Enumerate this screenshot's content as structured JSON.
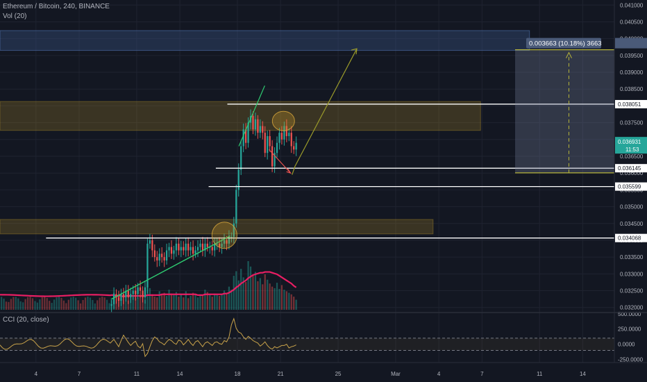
{
  "header": {
    "symbol_line": "Ethereum / Bitcoin, 240, BINANCE",
    "volume_label": "Vol (20)",
    "cci_label": "CCI (20, close)"
  },
  "colors": {
    "background": "#131722",
    "up": "#26a69a",
    "down": "#ef5350",
    "vol_ma": "#e91e63",
    "cci": "#c9a34a",
    "trendline": "#2ecc71",
    "arrow": "#9b9b2a",
    "zone_fill": "rgba(200,160,40,0.22)",
    "blue_zone": "rgba(60,90,140,0.35)"
  },
  "chart_data": {
    "type": "candlestick",
    "symbol": "ETHBTC",
    "interval": "240",
    "exchange": "BINANCE",
    "price_axis_ticks": [
      "0.041000",
      "0.040500",
      "0.040000",
      "0.039500",
      "0.039000",
      "0.038500",
      "0.038000",
      "0.037500",
      "0.037000",
      "0.036500",
      "0.036000",
      "0.035500",
      "0.035000",
      "0.034500",
      "0.034000",
      "0.033500",
      "0.033000",
      "0.032500",
      "0.032000"
    ],
    "ylim": [
      0.03185,
      0.04115
    ],
    "x_ticks": [
      {
        "label": "4",
        "day": 4
      },
      {
        "label": "7",
        "day": 7
      },
      {
        "label": "11",
        "day": 11
      },
      {
        "label": "14",
        "day": 14
      },
      {
        "label": "18",
        "day": 18
      },
      {
        "label": "21",
        "day": 21
      },
      {
        "label": "25",
        "day": 25
      },
      {
        "label": "Mar",
        "day": 29
      },
      {
        "label": "4",
        "day": 32
      },
      {
        "label": "7",
        "day": 35
      },
      {
        "label": "11",
        "day": 39
      },
      {
        "label": "14",
        "day": 42
      }
    ],
    "xlim": [
      1.5,
      44.2
    ],
    "candles_start_day": 9.25,
    "candle_step_days": 0.1667,
    "closes": [
      0.0321,
      0.0324,
      0.0323,
      0.0322,
      0.0324,
      0.0323,
      0.0325,
      0.0323,
      0.0324,
      0.0325,
      0.0324,
      0.0326,
      0.0325,
      0.0323,
      0.0326,
      0.0339,
      0.034,
      0.0337,
      0.0335,
      0.0334,
      0.0336,
      0.0335,
      0.0334,
      0.0337,
      0.0338,
      0.0336,
      0.0337,
      0.0339,
      0.0337,
      0.0338,
      0.0337,
      0.0339,
      0.0337,
      0.0338,
      0.0336,
      0.0337,
      0.0338,
      0.0339,
      0.0337,
      0.0339,
      0.0338,
      0.0338,
      0.0337,
      0.0339,
      0.0339,
      0.0338,
      0.0339,
      0.034,
      0.0339,
      0.0341,
      0.0341,
      0.0345,
      0.0355,
      0.0361,
      0.0368,
      0.0373,
      0.0369,
      0.0375,
      0.0377,
      0.0373,
      0.0376,
      0.0372,
      0.0374,
      0.0372,
      0.0366,
      0.0371,
      0.0368,
      0.0362,
      0.0366,
      0.0369,
      0.0372,
      0.037,
      0.0374,
      0.0371,
      0.0372,
      0.0368,
      0.0367,
      0.0369
    ],
    "last_price": "0.036931",
    "countdown": "11:53",
    "price_lines": [
      {
        "label": "0.038051",
        "value": 0.038051,
        "from_day": 17.3
      },
      {
        "label": "0.036145",
        "value": 0.036145,
        "from_day": 16.5
      },
      {
        "label": "0.035599",
        "value": 0.035599,
        "from_day": 16.0
      },
      {
        "label": "0.034068",
        "value": 0.034068,
        "from_day": 4.7
      }
    ],
    "zones": [
      {
        "name": "upper-zone",
        "low": 0.03727,
        "high": 0.03813,
        "from_day": 1.5,
        "to_day": 34.9
      },
      {
        "name": "lower-zone",
        "low": 0.03419,
        "high": 0.03462,
        "from_day": 1.5,
        "to_day": 31.6
      },
      {
        "name": "blue-zone",
        "low": 0.03965,
        "high": 0.04024,
        "from_day": 1.5,
        "to_day": 38.3
      }
    ],
    "measure": {
      "label": "0.003663 (10.18%) 3663",
      "from_price": 0.036007,
      "to_price": 0.03967,
      "from_day": 37.3,
      "to_day": 44.2
    },
    "volume": [
      1.5,
      2.2,
      1.8,
      2.0,
      1.4,
      1.6,
      2.3,
      1.2,
      1.9,
      1.7,
      2.1,
      1.5,
      1.8,
      1.6,
      1.3,
      3.9,
      2.8,
      2.0,
      1.7,
      1.6,
      2.4,
      1.9,
      2.2,
      1.8,
      2.6,
      2.1,
      1.9,
      2.3,
      1.7,
      2.0,
      1.6,
      2.4,
      1.5,
      1.8,
      2.2,
      1.9,
      1.6,
      2.0,
      1.8,
      2.6,
      2.3,
      2.0,
      1.7,
      2.1,
      1.9,
      1.8,
      2.0,
      2.5,
      2.2,
      3.0,
      2.6,
      4.4,
      5.0,
      3.8,
      5.3,
      4.2,
      3.6,
      6.3,
      5.6,
      4.5,
      4.9,
      3.7,
      4.1,
      3.3,
      4.6,
      3.9,
      3.4,
      3.0,
      2.8,
      3.5,
      2.7,
      3.2,
      2.6,
      2.4,
      2.2,
      2.0,
      1.7,
      1.3
    ],
    "volume_ma": [
      1.9,
      1.9,
      1.8,
      1.8,
      1.8,
      1.7,
      1.8,
      1.8,
      1.8,
      1.8,
      1.8,
      1.8,
      1.8,
      1.8,
      1.8,
      1.9,
      1.9,
      1.9,
      1.9,
      1.9,
      1.9,
      2.0,
      2.0,
      2.0,
      2.0,
      2.0,
      2.0,
      2.0,
      2.0,
      2.0,
      2.0,
      2.0,
      2.0,
      2.0,
      2.0,
      2.0,
      1.9,
      1.9,
      1.9,
      2.0,
      2.0,
      2.0,
      2.0,
      2.0,
      2.0,
      2.0,
      2.0,
      2.1,
      2.1,
      2.2,
      2.4,
      2.6,
      2.9,
      3.1,
      3.4,
      3.6,
      3.8,
      4.1,
      4.3,
      4.5,
      4.6,
      4.7,
      4.8,
      4.8,
      4.9,
      4.9,
      4.9,
      4.8,
      4.7,
      4.6,
      4.4,
      4.2,
      4.0,
      3.8,
      3.6,
      3.4,
      3.1,
      2.9
    ],
    "cci_ticks": [
      "500.0000",
      "250.0000",
      "0.0000",
      "-250.0000"
    ],
    "cci_ylim": [
      -300,
      520
    ],
    "cci_bands": [
      100,
      -100
    ],
    "cci": [
      40,
      80,
      20,
      -40,
      60,
      150,
      90,
      30,
      -20,
      20,
      50,
      -30,
      -60,
      10,
      -200,
      -150,
      -40,
      60,
      120,
      90,
      40,
      20,
      -10,
      40,
      80,
      60,
      20,
      0,
      70,
      50,
      -10,
      30,
      80,
      20,
      -20,
      40,
      60,
      10,
      -40,
      20,
      40,
      10,
      -20,
      30,
      40,
      10,
      0,
      60,
      40,
      120,
      320,
      420,
      260,
      200,
      180,
      120,
      80,
      130,
      100,
      60,
      40,
      20,
      -30,
      0,
      40,
      -20,
      -60,
      -80,
      -40,
      -60,
      -40,
      -20,
      -20,
      0,
      -60,
      -40,
      -30,
      -10
    ]
  }
}
